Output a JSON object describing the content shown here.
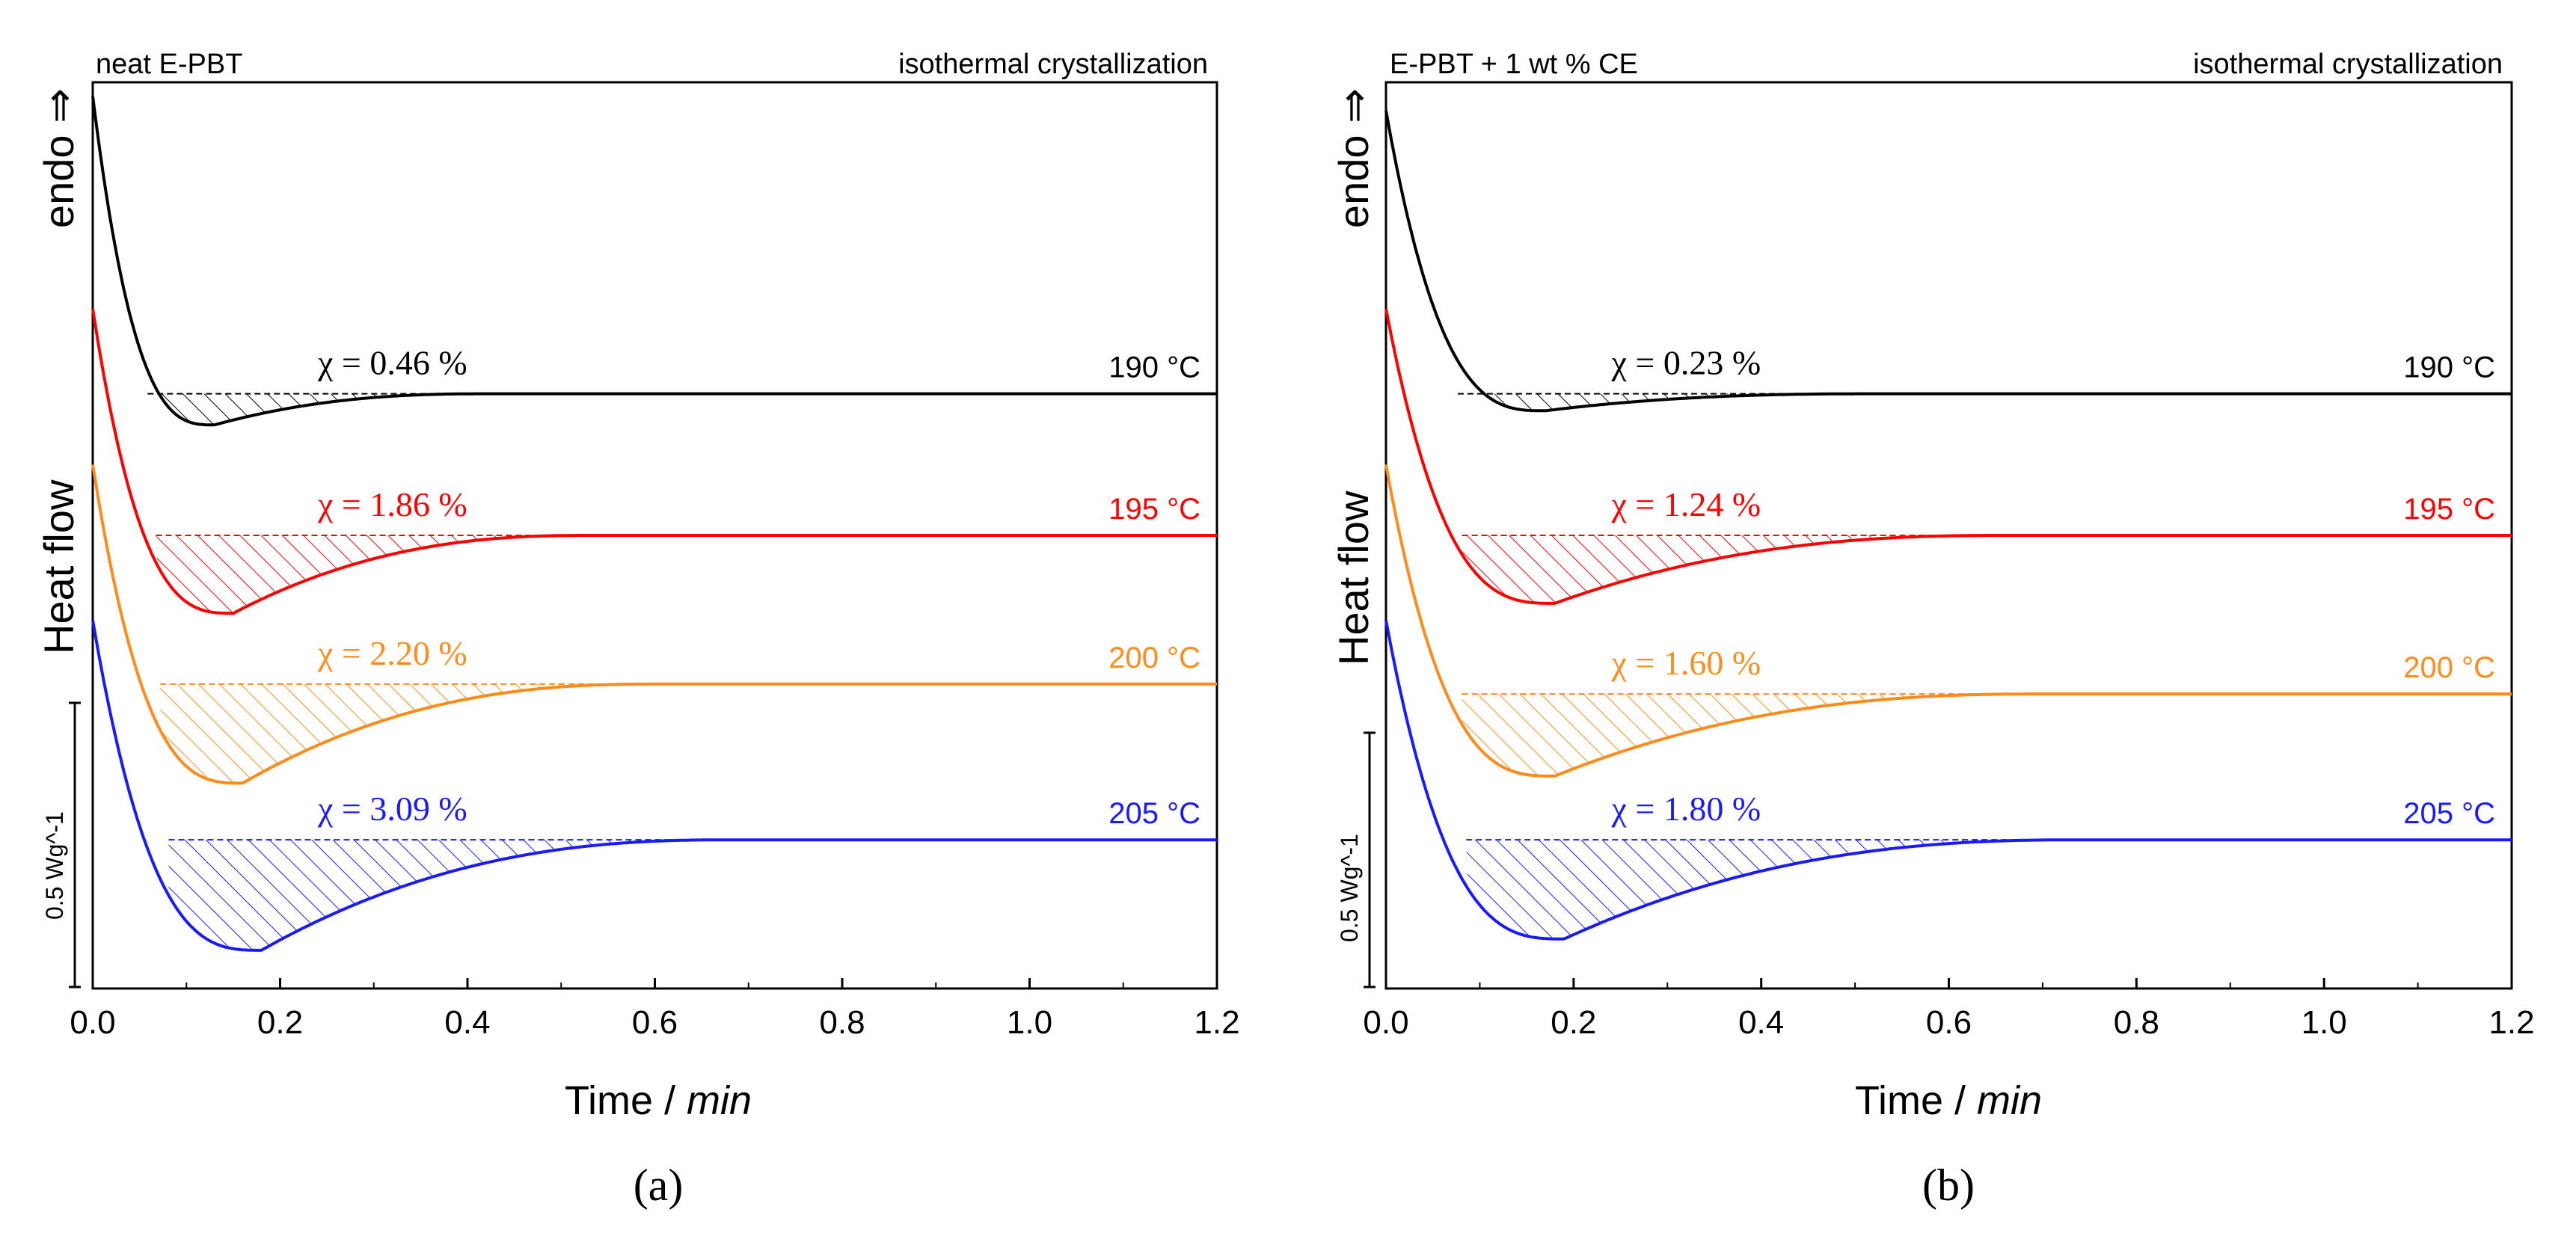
{
  "chart_data": [
    {
      "type": "line",
      "panel_caption": "(a)",
      "top_left_label": "neat E-PBT",
      "top_right_label": "isothermal crystallization",
      "xlabel": "Time / ",
      "xlabel_unit": "min",
      "ylabel": "Heat flow",
      "endo_label": "endo ⇒",
      "scale_bar_label": "0.5 Wg^-1",
      "xlim": [
        0,
        1.2
      ],
      "x_ticks": [
        "0.0",
        "0.2",
        "0.4",
        "0.6",
        "0.8",
        "1.0",
        "1.2"
      ],
      "series": [
        {
          "name": "190 °C",
          "chi": "χ = 0.46 %",
          "color": "#000000",
          "baseline": 1.0,
          "depth": 0.22,
          "tmin": 0.13,
          "end": 0.42,
          "start_level": 3.1
        },
        {
          "name": "195 °C",
          "chi": "χ = 1.86 %",
          "color": "#ff0000",
          "baseline": 0.0,
          "depth": 0.55,
          "tmin": 0.15,
          "end": 0.53,
          "start_level": 1.6
        },
        {
          "name": "200 °C",
          "chi": "χ = 2.20 %",
          "color": "#ff8c1a",
          "baseline": -1.05,
          "depth": 0.7,
          "tmin": 0.16,
          "end": 0.6,
          "start_level": 0.5
        },
        {
          "name": "205 °C",
          "chi": "χ = 3.09 %",
          "color": "#1a1aff",
          "baseline": -2.15,
          "depth": 0.78,
          "tmin": 0.18,
          "end": 0.68,
          "start_level": -0.6
        }
      ]
    },
    {
      "type": "line",
      "panel_caption": "(b)",
      "top_left_label": "E-PBT + 1 wt % CE",
      "top_right_label": "isothermal crystallization",
      "xlabel": "Time / ",
      "xlabel_unit": "min",
      "ylabel": "Heat flow",
      "endo_label": "endo ⇒",
      "scale_bar_label": "0.5 Wg^-1",
      "xlim": [
        0,
        1.2
      ],
      "x_ticks": [
        "0.0",
        "0.2",
        "0.4",
        "0.6",
        "0.8",
        "1.0",
        "1.2"
      ],
      "series": [
        {
          "name": "190 °C",
          "chi": "χ = 0.23 %",
          "color": "#000000",
          "baseline": 1.0,
          "depth": 0.12,
          "tmin": 0.17,
          "end": 0.52,
          "start_level": 3.0
        },
        {
          "name": "195 °C",
          "chi": "χ = 1.24 %",
          "color": "#ff0000",
          "baseline": 0.0,
          "depth": 0.48,
          "tmin": 0.18,
          "end": 0.66,
          "start_level": 1.6
        },
        {
          "name": "200 °C",
          "chi": "χ = 1.60 %",
          "color": "#ff8c1a",
          "baseline": -1.12,
          "depth": 0.58,
          "tmin": 0.18,
          "end": 0.7,
          "start_level": 0.5
        },
        {
          "name": "205 °C",
          "chi": "χ = 1.80 %",
          "color": "#1a1aff",
          "baseline": -2.15,
          "depth": 0.7,
          "tmin": 0.19,
          "end": 0.74,
          "start_level": -0.6
        }
      ]
    }
  ]
}
